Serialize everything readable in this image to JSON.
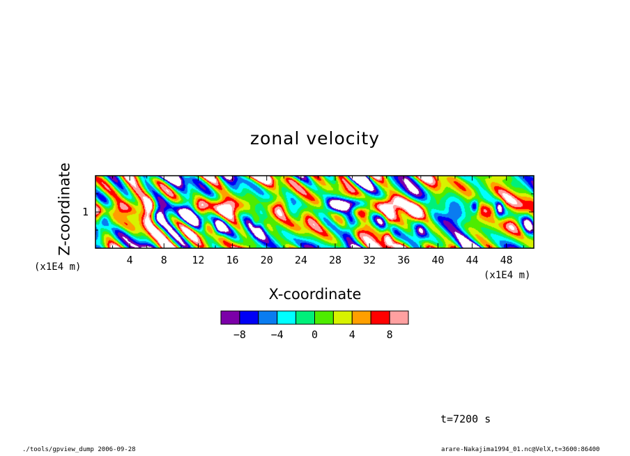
{
  "chart_data": {
    "type": "heatmap",
    "title": "zonal velocity",
    "xlabel": "X-coordinate",
    "ylabel": "Z-coordinate",
    "x_unit": "(x1E4 m)",
    "y_unit": "(x1E4 m)",
    "xlim": [
      0,
      51.2
    ],
    "ylim": [
      0,
      2
    ],
    "x_ticks": [
      4,
      8,
      12,
      16,
      20,
      24,
      28,
      32,
      36,
      40,
      44,
      48
    ],
    "y_ticks": [
      1
    ],
    "colorbar": {
      "levels": [
        -10,
        -8,
        -6,
        -4,
        -2,
        0,
        2,
        4,
        6,
        8,
        10
      ],
      "colors": [
        "#7B00A8",
        "#0000F5",
        "#0A7CF0",
        "#00FFFF",
        "#00F07A",
        "#4EEC00",
        "#D8F200",
        "#FF9F00",
        "#FF0000",
        "#FFA0A0"
      ],
      "tick_values": [
        -8,
        -4,
        0,
        4,
        8
      ],
      "tick_labels": [
        "−8",
        "−4",
        "0",
        "4",
        "8"
      ]
    },
    "features": [
      {
        "x": 1.0,
        "z": 0.8,
        "sx": 0.8,
        "sz": 0.25,
        "amp": -12
      },
      {
        "x": 3.0,
        "z": 1.1,
        "sx": 2.2,
        "sz": 0.22,
        "amp": 9
      },
      {
        "x": 6.3,
        "z": 1.05,
        "sx": 0.7,
        "sz": 0.35,
        "amp": 12
      },
      {
        "x": 7.5,
        "z": 0.95,
        "sx": 0.9,
        "sz": 0.3,
        "amp": -10
      },
      {
        "x": 11.0,
        "z": 0.9,
        "sx": 1.8,
        "sz": 0.35,
        "amp": -11
      },
      {
        "x": 12.2,
        "z": 1.1,
        "sx": 1.0,
        "sz": 0.25,
        "amp": 12
      },
      {
        "x": 14.4,
        "z": 0.55,
        "sx": 0.7,
        "sz": 0.22,
        "amp": -10
      },
      {
        "x": 15.7,
        "z": 1.15,
        "sx": 1.8,
        "sz": 0.28,
        "amp": 12
      },
      {
        "x": 13.0,
        "z": 0.55,
        "sx": 1.2,
        "sz": 0.25,
        "amp": 7
      },
      {
        "x": 18.7,
        "z": 0.7,
        "sx": 0.5,
        "sz": 0.22,
        "amp": 9
      },
      {
        "x": 19.0,
        "z": 0.75,
        "sx": 0.9,
        "sz": 0.4,
        "amp": -8
      },
      {
        "x": 21.6,
        "z": 1.15,
        "sx": 0.9,
        "sz": 0.3,
        "amp": 8
      },
      {
        "x": 25.0,
        "z": 0.8,
        "sx": 1.5,
        "sz": 0.4,
        "amp": 6
      },
      {
        "x": 27.5,
        "z": 1.15,
        "sx": 1.2,
        "sz": 0.22,
        "amp": -8
      },
      {
        "x": 30.0,
        "z": 1.2,
        "sx": 2.2,
        "sz": 0.2,
        "amp": -14
      },
      {
        "x": 31.5,
        "z": 1.05,
        "sx": 2.0,
        "sz": 0.22,
        "amp": 12
      },
      {
        "x": 29.8,
        "z": 0.6,
        "sx": 0.8,
        "sz": 0.4,
        "amp": -9
      },
      {
        "x": 34.2,
        "z": 0.5,
        "sx": 0.6,
        "sz": 0.5,
        "amp": 10
      },
      {
        "x": 35.0,
        "z": 1.25,
        "sx": 1.3,
        "sz": 0.22,
        "amp": 9
      },
      {
        "x": 37.8,
        "z": 1.1,
        "sx": 1.7,
        "sz": 0.3,
        "amp": 12
      },
      {
        "x": 38.0,
        "z": 0.5,
        "sx": 0.8,
        "sz": 0.3,
        "amp": -9
      },
      {
        "x": 41.8,
        "z": 0.9,
        "sx": 1.4,
        "sz": 0.35,
        "amp": -6
      },
      {
        "x": 44.3,
        "z": 1.15,
        "sx": 0.5,
        "sz": 0.2,
        "amp": -12
      },
      {
        "x": 46.3,
        "z": 1.1,
        "sx": 1.8,
        "sz": 0.22,
        "amp": 9
      },
      {
        "x": 47.2,
        "z": 1.1,
        "sx": 0.5,
        "sz": 0.22,
        "amp": -11
      },
      {
        "x": 48.6,
        "z": 0.7,
        "sx": 1.0,
        "sz": 0.3,
        "amp": 8
      },
      {
        "x": 50.5,
        "z": 0.6,
        "sx": 0.7,
        "sz": 0.35,
        "amp": -9
      }
    ]
  },
  "annotations": {
    "time": "t=7200 s",
    "footer_left": "./tools/gpview_dump  2006-09-28",
    "footer_right": "arare-Nakajima1994_01.nc@VelX,t=3600:86400"
  }
}
